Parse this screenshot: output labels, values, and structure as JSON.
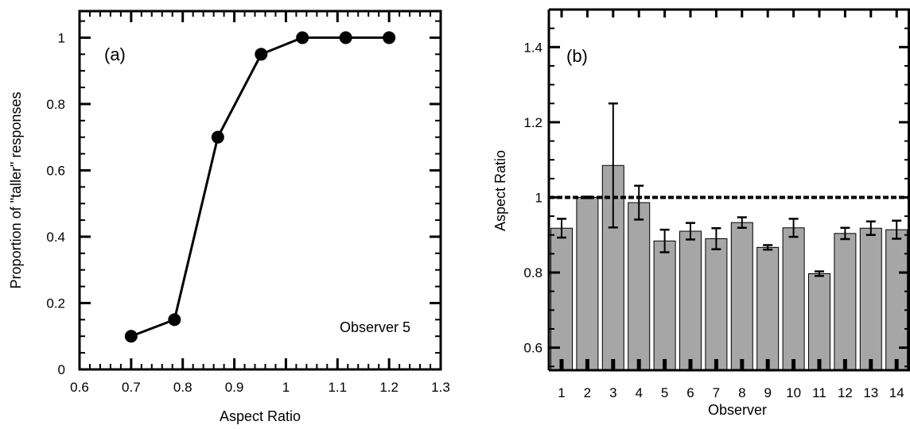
{
  "chart_data": [
    {
      "type": "line",
      "panel_label": "(a)",
      "annotation": "Observer 5",
      "xlabel": "Aspect Ratio",
      "ylabel": "Proportion of \"taller\" responses",
      "xlim": [
        0.6,
        1.3
      ],
      "ylim": [
        0,
        1.08
      ],
      "xticks": [
        "0.6",
        "0.7",
        "0.8",
        "0.9",
        "1",
        "1.1",
        "1.2",
        "1.3"
      ],
      "yticks": [
        "0",
        "0.2",
        "0.4",
        "0.6",
        "0.8",
        "1"
      ],
      "grid": false,
      "series": [
        {
          "x": [
            0.7,
            0.784,
            0.868,
            0.952,
            1.032,
            1.116,
            1.2
          ],
          "y": [
            0.1,
            0.15,
            0.7,
            0.95,
            1.0,
            1.0,
            1.0
          ]
        }
      ]
    },
    {
      "type": "bar",
      "panel_label": "(b)",
      "xlabel": "Observer",
      "ylabel": "Aspect Ratio",
      "categories": [
        "1",
        "2",
        "3",
        "4",
        "5",
        "6",
        "7",
        "8",
        "9",
        "10",
        "11",
        "12",
        "13",
        "14"
      ],
      "ylim": [
        0.54,
        1.5
      ],
      "yticks": [
        "0.6",
        "0.8",
        "1",
        "1.2",
        "1.4"
      ],
      "reference_line": 1.0,
      "grid": false,
      "values": [
        0.918,
        1.0,
        1.085,
        0.986,
        0.884,
        0.91,
        0.89,
        0.933,
        0.867,
        0.919,
        0.797,
        0.904,
        0.918,
        0.914
      ],
      "error": [
        0.025,
        0.002,
        0.165,
        0.045,
        0.03,
        0.022,
        0.028,
        0.014,
        0.006,
        0.024,
        0.006,
        0.015,
        0.018,
        0.024
      ]
    }
  ]
}
